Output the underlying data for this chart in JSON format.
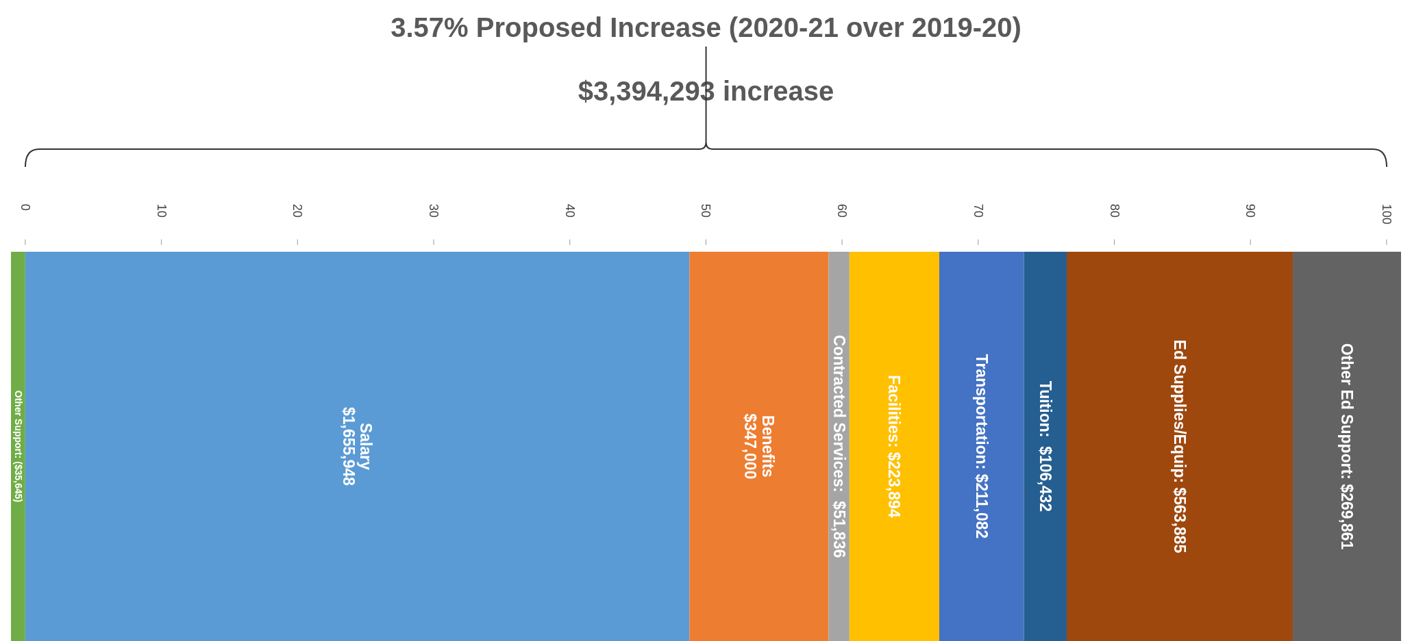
{
  "chart_data": {
    "type": "bar",
    "orientation": "horizontal",
    "stacked": true,
    "title": "3.57% Proposed Increase (2020-21 over 2019-20)",
    "subtitle": "$3,394,293 increase",
    "categories": [
      null
    ],
    "series": [
      {
        "color": "#70ad47",
        "values": [
          -1.05
        ]
      },
      {
        "color": "#5b9bd5",
        "values": [
          48.79
        ]
      },
      {
        "color": "#ed7d31",
        "values": [
          10.22
        ]
      },
      {
        "color": "#a5a5a5",
        "values": [
          1.53
        ]
      },
      {
        "color": "#ffc000",
        "values": [
          6.6
        ]
      },
      {
        "color": "#4472c4",
        "values": [
          6.22
        ]
      },
      {
        "color": "#255e91",
        "values": [
          3.14
        ]
      },
      {
        "color": "#9e480e",
        "values": [
          16.61
        ]
      },
      {
        "color": "#636363",
        "values": [
          7.95
        ]
      }
    ],
    "annotations": [
      "Other Support: ($35,645)",
      "Salary\n$1,655,948",
      "Benefits\n$347,000",
      "Contracted Services:  $51,836",
      "Facilities: $223,894",
      "Transportation: $211,082",
      "Tuition:  $106,432",
      "Ed Supplies/Equip: $563,885",
      "Other Ed Support: $269,861"
    ],
    "xlim": [
      -1.05,
      101.06
    ],
    "xticks": [
      0,
      10,
      20,
      30,
      40,
      50,
      60,
      70,
      80,
      90,
      100
    ]
  }
}
